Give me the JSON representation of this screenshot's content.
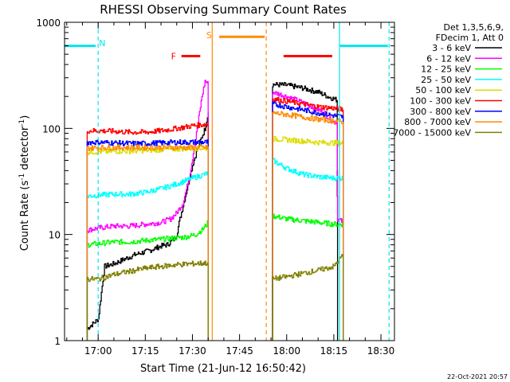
{
  "chart_data": {
    "type": "line",
    "title": "RHESSI Observing Summary Count Rates",
    "xlabel": "Start Time (21-Jun-12 16:50:42)",
    "ylabel_prefix": "Count Rate (s",
    "ylabel_exp1": "-1",
    "ylabel_mid": " detector",
    "ylabel_exp2": "-1",
    "ylabel_suffix": ")",
    "y_scale": "log",
    "xlim_min": [
      -10.7,
      94.3
    ],
    "ylim": [
      1,
      1000
    ],
    "x_ticks": [
      {
        "min": 0,
        "label": "17:00"
      },
      {
        "min": 15,
        "label": "17:15"
      },
      {
        "min": 30,
        "label": "17:30"
      },
      {
        "min": 45,
        "label": "17:45"
      },
      {
        "min": 60,
        "label": "18:00"
      },
      {
        "min": 75,
        "label": "18:15"
      },
      {
        "min": 90,
        "label": "18:30"
      }
    ],
    "y_ticks": [
      {
        "value": 1,
        "label": "1"
      },
      {
        "value": 10,
        "label": "10"
      },
      {
        "value": 100,
        "label": "100"
      },
      {
        "value": 1000,
        "label": "1000"
      }
    ],
    "legend": {
      "position": "right",
      "header1": "Det 1,3,5,6,9,",
      "header2": "FDecim 1, Att 0"
    },
    "series": [
      {
        "name": "3 - 6 keV",
        "color": "#000000",
        "segments": [
          [
            [
              -3.5,
              1.3
            ],
            [
              -1,
              1.5
            ],
            [
              0,
              1.6
            ],
            [
              2,
              5
            ],
            [
              5,
              5.3
            ],
            [
              8,
              5.8
            ],
            [
              12,
              6.5
            ],
            [
              16,
              7
            ],
            [
              20,
              7.8
            ],
            [
              22,
              8
            ],
            [
              24,
              9
            ],
            [
              25,
              10
            ],
            [
              26,
              14
            ],
            [
              28,
              25
            ],
            [
              30,
              45
            ],
            [
              32,
              70
            ],
            [
              34,
              100
            ],
            [
              35,
              140
            ]
          ],
          [
            [
              55.5,
              260
            ],
            [
              60,
              255
            ],
            [
              65,
              240
            ],
            [
              70,
              220
            ],
            [
              73,
              200
            ],
            [
              75,
              190
            ],
            [
              76,
              185
            ],
            [
              76.2,
              3
            ]
          ]
        ]
      },
      {
        "name": "6 - 12 keV",
        "color": "#ff00ff",
        "segments": [
          [
            [
              -3.5,
              11
            ],
            [
              0,
              11.5
            ],
            [
              5,
              12
            ],
            [
              10,
              12
            ],
            [
              15,
              12.5
            ],
            [
              20,
              13
            ],
            [
              23,
              14
            ],
            [
              25,
              16
            ],
            [
              27,
              20
            ],
            [
              29,
              35
            ],
            [
              31,
              80
            ],
            [
              33,
              200
            ],
            [
              34,
              280
            ],
            [
              35,
              260
            ]
          ],
          [
            [
              55.5,
              220
            ],
            [
              60,
              200
            ],
            [
              63,
              185
            ],
            [
              66,
              170
            ],
            [
              69,
              155
            ],
            [
              72,
              140
            ],
            [
              74,
              120
            ],
            [
              75,
              115
            ],
            [
              76,
              115
            ],
            [
              76.2,
              14
            ],
            [
              78,
              13
            ]
          ]
        ]
      },
      {
        "name": "12 - 25 keV",
        "color": "#00ff00",
        "segments": [
          [
            [
              -3.5,
              8
            ],
            [
              0,
              8.2
            ],
            [
              5,
              8.5
            ],
            [
              10,
              8.5
            ],
            [
              15,
              8.8
            ],
            [
              20,
              9
            ],
            [
              25,
              9.3
            ],
            [
              28,
              9.5
            ],
            [
              31,
              10
            ],
            [
              33,
              11
            ],
            [
              35,
              13
            ]
          ],
          [
            [
              55.5,
              15
            ],
            [
              60,
              14
            ],
            [
              65,
              13.5
            ],
            [
              70,
              13
            ],
            [
              75,
              12.5
            ],
            [
              78,
              12.5
            ]
          ]
        ]
      },
      {
        "name": "25 - 50 keV",
        "color": "#00ffff",
        "segments": [
          [
            [
              -3.5,
              23
            ],
            [
              0,
              23.5
            ],
            [
              5,
              24
            ],
            [
              10,
              24
            ],
            [
              15,
              25
            ],
            [
              20,
              27
            ],
            [
              25,
              30
            ],
            [
              30,
              34
            ],
            [
              34,
              37
            ],
            [
              35,
              38
            ]
          ],
          [
            [
              55.5,
              50
            ],
            [
              60,
              42
            ],
            [
              65,
              37
            ],
            [
              70,
              35
            ],
            [
              75,
              34
            ],
            [
              78,
              34
            ]
          ]
        ]
      },
      {
        "name": "50 - 100 keV",
        "color": "#dddd00",
        "segments": [
          [
            [
              -3.5,
              60
            ],
            [
              0,
              60
            ],
            [
              5,
              61
            ],
            [
              10,
              61
            ],
            [
              15,
              62
            ],
            [
              20,
              63
            ],
            [
              25,
              64
            ],
            [
              30,
              65
            ],
            [
              35,
              65
            ]
          ],
          [
            [
              55.5,
              80
            ],
            [
              60,
              78
            ],
            [
              65,
              76
            ],
            [
              70,
              74
            ],
            [
              75,
              73
            ],
            [
              78,
              72
            ]
          ]
        ]
      },
      {
        "name": "100 - 300 keV",
        "color": "#ff0000",
        "segments": [
          [
            [
              -3.5,
              95
            ],
            [
              0,
              95
            ],
            [
              5,
              94
            ],
            [
              10,
              92
            ],
            [
              15,
              92
            ],
            [
              20,
              95
            ],
            [
              25,
              100
            ],
            [
              30,
              106
            ],
            [
              35,
              110
            ]
          ],
          [
            [
              55.5,
              190
            ],
            [
              60,
              180
            ],
            [
              65,
              170
            ],
            [
              70,
              160
            ],
            [
              75,
              155
            ],
            [
              78,
              150
            ]
          ]
        ]
      },
      {
        "name": "300 - 800 keV",
        "color": "#0000ff",
        "segments": [
          [
            [
              -3.5,
              74
            ],
            [
              0,
              74
            ],
            [
              5,
              73
            ],
            [
              10,
              72
            ],
            [
              15,
              72
            ],
            [
              20,
              73
            ],
            [
              25,
              74
            ],
            [
              30,
              74
            ],
            [
              35,
              74
            ]
          ],
          [
            [
              55.5,
              170
            ],
            [
              60,
              160
            ],
            [
              65,
              150
            ],
            [
              70,
              140
            ],
            [
              75,
              132
            ],
            [
              78,
              128
            ]
          ]
        ]
      },
      {
        "name": "800 - 7000 keV",
        "color": "#ff8c00",
        "segments": [
          [
            [
              -3.5,
              65
            ],
            [
              0,
              66
            ],
            [
              5,
              66
            ],
            [
              10,
              66
            ],
            [
              15,
              66
            ],
            [
              20,
              66
            ],
            [
              25,
              66
            ],
            [
              30,
              66
            ],
            [
              35,
              66
            ]
          ],
          [
            [
              55.5,
              140
            ],
            [
              60,
              135
            ],
            [
              65,
              128
            ],
            [
              70,
              122
            ],
            [
              75,
              118
            ],
            [
              78,
              115
            ]
          ]
        ]
      },
      {
        "name": "7000 - 15000 keV",
        "color": "#808000",
        "segments": [
          [
            [
              -3.5,
              3.8
            ],
            [
              0,
              3.8
            ],
            [
              5,
              4.2
            ],
            [
              10,
              4.5
            ],
            [
              15,
              4.8
            ],
            [
              20,
              5
            ],
            [
              25,
              5.2
            ],
            [
              30,
              5.3
            ],
            [
              35,
              5.4
            ]
          ],
          [
            [
              55.5,
              3.8
            ],
            [
              60,
              4
            ],
            [
              65,
              4.3
            ],
            [
              70,
              4.6
            ],
            [
              75,
              5
            ],
            [
              78,
              6.5
            ]
          ]
        ]
      }
    ],
    "vlines": [
      {
        "x": 0,
        "color": "#00e5ee",
        "dash": true
      },
      {
        "x": 36.3,
        "color": "#ff8c00",
        "dash": false
      },
      {
        "x": 53.5,
        "color": "#ff8c00",
        "dash": true
      },
      {
        "x": 76.8,
        "color": "#00e5ee",
        "dash": false
      },
      {
        "x": 92.6,
        "color": "#00e5ee",
        "dash": true
      }
    ],
    "flag_bars": [
      {
        "x0": -10.7,
        "x1": -0.8,
        "y": 600,
        "color": "#00e5ee",
        "label": "N",
        "label_x": 1.3,
        "label_y": 640,
        "label_color": "#00e5ee"
      },
      {
        "x0": 77,
        "x1": 92.2,
        "y": 600,
        "color": "#00e5ee",
        "label": "",
        "label_x": 0,
        "label_y": 0,
        "label_color": "#00e5ee"
      },
      {
        "x0": 26.5,
        "x1": 32.5,
        "y": 480,
        "color": "#ff0000",
        "label": "F",
        "label_x": 24,
        "label_y": 480,
        "label_color": "#ff0000"
      },
      {
        "x0": 38.5,
        "x1": 53,
        "y": 730,
        "color": "#ff8c00",
        "label": "S",
        "label_x": 35.3,
        "label_y": 760,
        "label_color": "#ff8c00"
      },
      {
        "x0": 59,
        "x1": 74.5,
        "y": 480,
        "color": "#ff0000",
        "label": "",
        "label_x": 0,
        "label_y": 0,
        "label_color": "#ff0000"
      }
    ],
    "timestamp": "22-Oct-2021 20:57"
  }
}
